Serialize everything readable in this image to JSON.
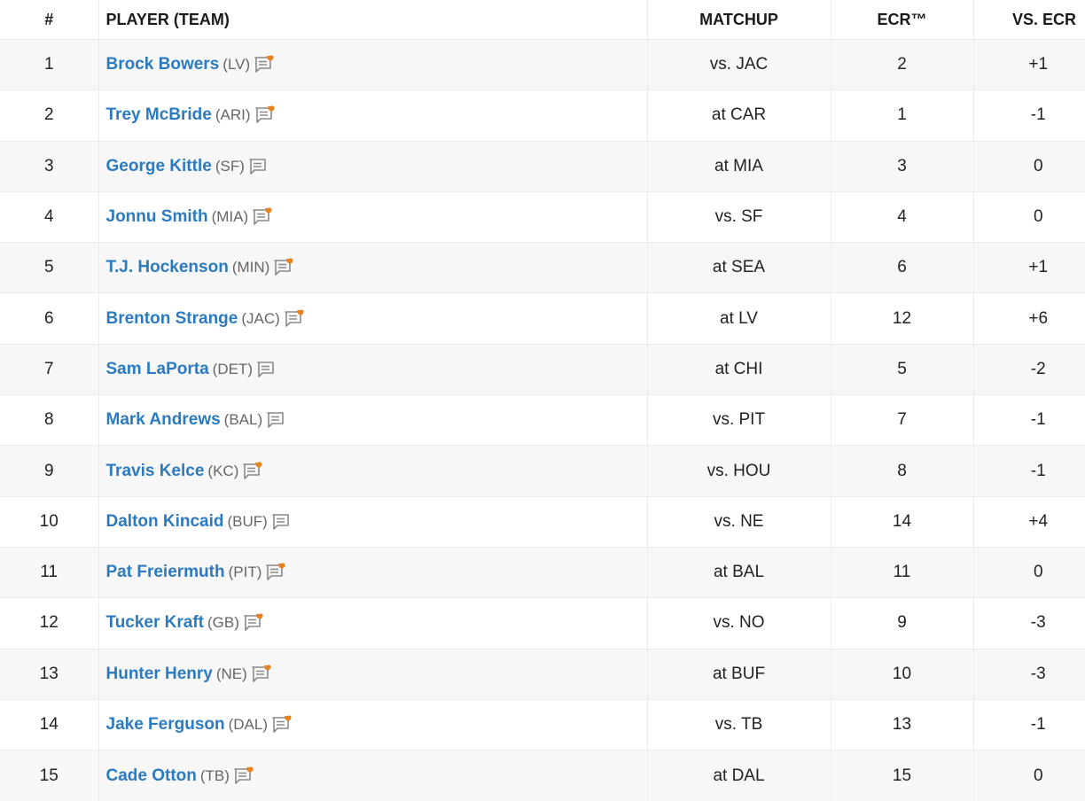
{
  "headers": {
    "rank": "#",
    "player": "PLAYER (TEAM)",
    "matchup": "MATCHUP",
    "ecr": "ECR™",
    "vs_ecr": "VS. ECR"
  },
  "colors": {
    "link": "#2c7bc0",
    "note_new_accent": "#e8821e",
    "note_icon_gray": "#8a8a8a"
  },
  "rows": [
    {
      "rank": "1",
      "name": "Brock Bowers",
      "team": "(LV)",
      "note": "note-new-icon",
      "matchup": "vs. JAC",
      "ecr": "2",
      "vs_ecr": "+1"
    },
    {
      "rank": "2",
      "name": "Trey McBride",
      "team": "(ARI)",
      "note": "note-new-icon",
      "matchup": "at CAR",
      "ecr": "1",
      "vs_ecr": "-1"
    },
    {
      "rank": "3",
      "name": "George Kittle",
      "team": "(SF)",
      "note": "note-icon",
      "matchup": "at MIA",
      "ecr": "3",
      "vs_ecr": "0"
    },
    {
      "rank": "4",
      "name": "Jonnu Smith",
      "team": "(MIA)",
      "note": "note-new-icon",
      "matchup": "vs. SF",
      "ecr": "4",
      "vs_ecr": "0"
    },
    {
      "rank": "5",
      "name": "T.J. Hockenson",
      "team": "(MIN)",
      "note": "note-new-icon",
      "matchup": "at SEA",
      "ecr": "6",
      "vs_ecr": "+1"
    },
    {
      "rank": "6",
      "name": "Brenton Strange",
      "team": "(JAC)",
      "note": "note-new-icon",
      "matchup": "at LV",
      "ecr": "12",
      "vs_ecr": "+6"
    },
    {
      "rank": "7",
      "name": "Sam LaPorta",
      "team": "(DET)",
      "note": "note-icon",
      "matchup": "at CHI",
      "ecr": "5",
      "vs_ecr": "-2"
    },
    {
      "rank": "8",
      "name": "Mark Andrews",
      "team": "(BAL)",
      "note": "note-icon",
      "matchup": "vs. PIT",
      "ecr": "7",
      "vs_ecr": "-1"
    },
    {
      "rank": "9",
      "name": "Travis Kelce",
      "team": "(KC)",
      "note": "note-new-icon",
      "matchup": "vs. HOU",
      "ecr": "8",
      "vs_ecr": "-1"
    },
    {
      "rank": "10",
      "name": "Dalton Kincaid",
      "team": "(BUF)",
      "note": "note-icon",
      "matchup": "vs. NE",
      "ecr": "14",
      "vs_ecr": "+4"
    },
    {
      "rank": "11",
      "name": "Pat Freiermuth",
      "team": "(PIT)",
      "note": "note-new-icon",
      "matchup": "at BAL",
      "ecr": "11",
      "vs_ecr": "0"
    },
    {
      "rank": "12",
      "name": "Tucker Kraft",
      "team": "(GB)",
      "note": "note-new-icon",
      "matchup": "vs. NO",
      "ecr": "9",
      "vs_ecr": "-3"
    },
    {
      "rank": "13",
      "name": "Hunter Henry",
      "team": "(NE)",
      "note": "note-new-icon",
      "matchup": "at BUF",
      "ecr": "10",
      "vs_ecr": "-3"
    },
    {
      "rank": "14",
      "name": "Jake Ferguson",
      "team": "(DAL)",
      "note": "note-new-icon",
      "matchup": "vs. TB",
      "ecr": "13",
      "vs_ecr": "-1"
    },
    {
      "rank": "15",
      "name": "Cade Otton",
      "team": "(TB)",
      "note": "note-new-icon",
      "matchup": "at DAL",
      "ecr": "15",
      "vs_ecr": "0"
    }
  ]
}
